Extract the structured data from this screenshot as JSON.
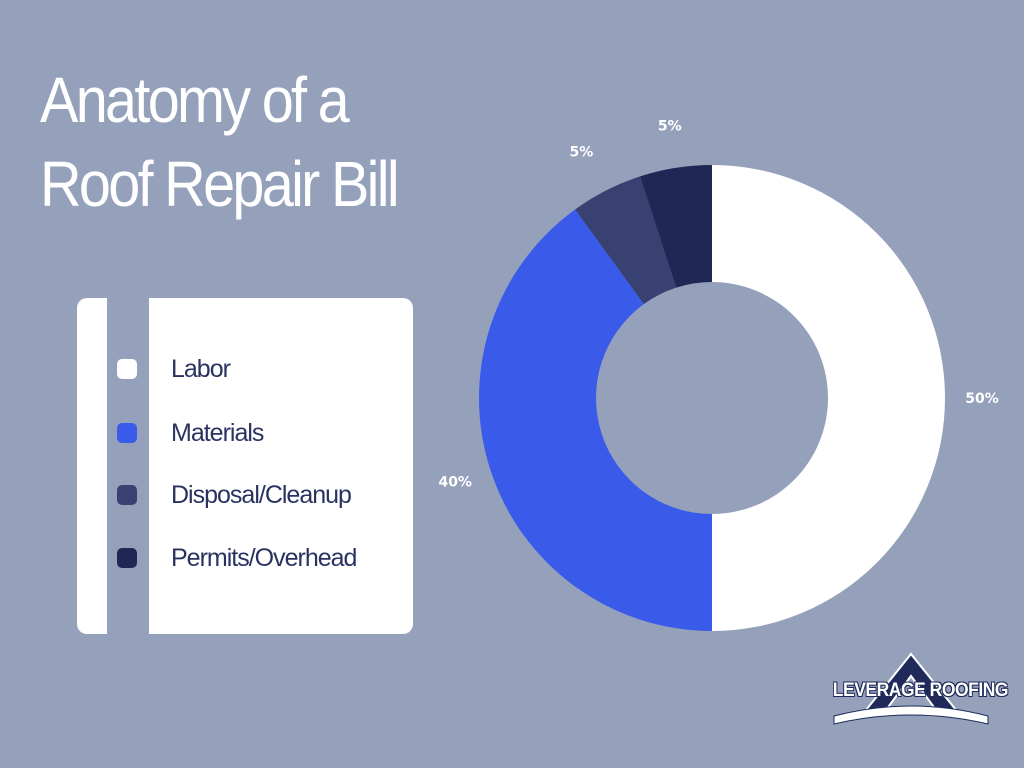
{
  "title": {
    "line1": "Anatomy of a",
    "line2": "Roof Repair Bill"
  },
  "legend": {
    "items": [
      {
        "label": "Labor",
        "color": "#FFFFFF"
      },
      {
        "label": "Materials",
        "color": "#3A5BEA"
      },
      {
        "label": "Disposal/Cleanup",
        "color": "#394173"
      },
      {
        "label": "Permits/Overhead",
        "color": "#1F2855"
      }
    ]
  },
  "chart_data": {
    "type": "pie",
    "variant": "donut",
    "categories": [
      "Labor",
      "Materials",
      "Disposal/Cleanup",
      "Permits/Overhead"
    ],
    "values": [
      50,
      40,
      5,
      5
    ],
    "data_labels": [
      "50%",
      "40%",
      "5%",
      "5%"
    ],
    "colors": [
      "#FFFFFF",
      "#3A5BEA",
      "#394173",
      "#1F2855"
    ],
    "start": "top, clockwise",
    "legend_placement": "left"
  },
  "logo": {
    "text": "LEVERAGE ROOFING"
  }
}
